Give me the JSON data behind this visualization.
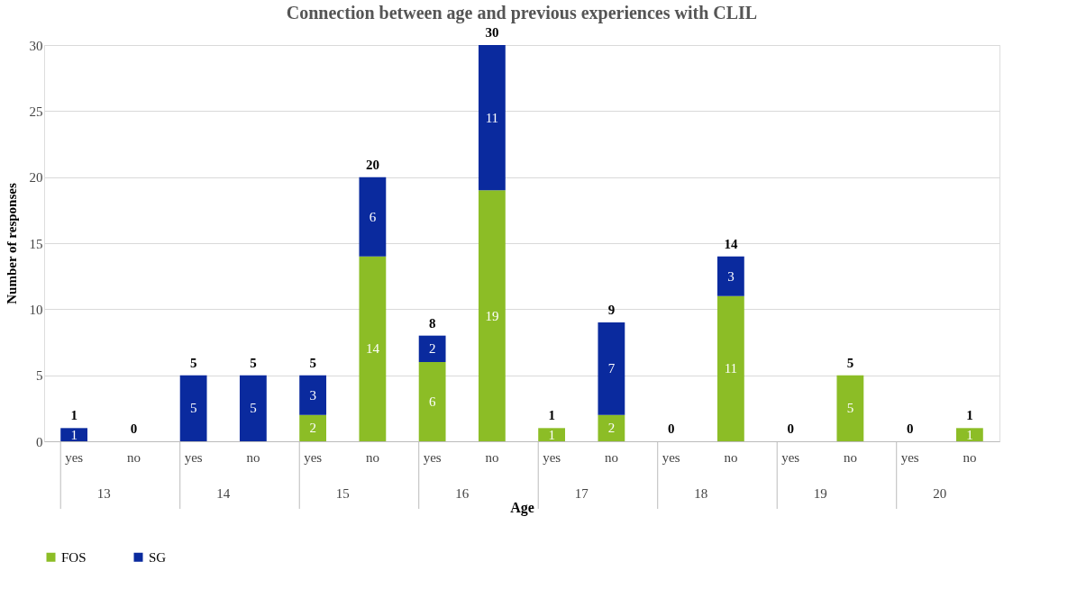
{
  "chart_data": {
    "type": "bar",
    "title": "Connection between age and previous experiences with CLIL",
    "xlabel": "Age",
    "ylabel": "Number of responses",
    "categories": [
      "yes",
      "no",
      "yes",
      "no",
      "yes",
      "no",
      "yes",
      "no",
      "yes",
      "no",
      "yes",
      "no",
      "yes",
      "no",
      "yes",
      "no"
    ],
    "annotations": [
      "13",
      "14",
      "15",
      "16",
      "17",
      "18",
      "19",
      "20"
    ],
    "stacked": true,
    "series": [
      {
        "name": "FOS",
        "color": "#8cbd26",
        "values": [
          0,
          0,
          0,
          0,
          2,
          14,
          6,
          19,
          1,
          2,
          0,
          11,
          0,
          5,
          0,
          1
        ],
        "value_labels": [
          null,
          null,
          null,
          null,
          "2",
          "14",
          "6",
          "19",
          "1",
          "2",
          null,
          "11",
          null,
          "5",
          null,
          "1"
        ]
      },
      {
        "name": "SG",
        "color": "#0a2a9e",
        "values": [
          1,
          0,
          5,
          5,
          3,
          6,
          2,
          11,
          0,
          7,
          0,
          3,
          0,
          0,
          0,
          0
        ],
        "value_labels": [
          "1",
          null,
          "5",
          "5",
          "3",
          "6",
          "2",
          "11",
          null,
          "7",
          null,
          "3",
          null,
          null,
          null,
          null
        ]
      }
    ],
    "totals": [
      "1",
      "0",
      "5",
      "5",
      "5",
      "20",
      "8",
      "30",
      "1",
      "9",
      "0",
      "14",
      "0",
      "5",
      "0",
      "1"
    ],
    "ylim": [
      0,
      30
    ],
    "yticks": [
      0,
      5,
      10,
      15,
      20,
      25,
      30
    ],
    "grid": "y",
    "legend": "bottom"
  }
}
